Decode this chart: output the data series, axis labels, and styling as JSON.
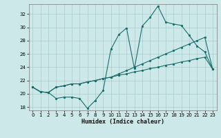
{
  "xlabel": "Humidex (Indice chaleur)",
  "background_color": "#cde8e8",
  "grid_color": "#a8cccc",
  "line_color": "#1a6b6b",
  "xlim": [
    -0.5,
    23.5
  ],
  "ylim": [
    17.5,
    33.5
  ],
  "xticks": [
    0,
    1,
    2,
    3,
    4,
    5,
    6,
    7,
    8,
    9,
    10,
    11,
    12,
    13,
    14,
    15,
    16,
    17,
    18,
    19,
    20,
    21,
    22,
    23
  ],
  "yticks": [
    18,
    20,
    22,
    24,
    26,
    28,
    30,
    32
  ],
  "line1": [
    21.0,
    20.3,
    20.2,
    19.3,
    19.5,
    19.5,
    19.3,
    17.8,
    19.0,
    20.5,
    26.7,
    28.9,
    29.9,
    23.8,
    30.2,
    31.5,
    33.2,
    30.8,
    30.5,
    30.3,
    28.8,
    27.2,
    26.3,
    23.7
  ],
  "line2": [
    21.0,
    20.3,
    20.2,
    21.0,
    21.2,
    21.5,
    21.5,
    21.8,
    22.0,
    22.3,
    22.5,
    23.0,
    23.5,
    24.0,
    24.5,
    25.0,
    25.5,
    26.0,
    26.5,
    27.0,
    27.5,
    28.0,
    28.5,
    23.7
  ],
  "line3": [
    21.0,
    20.3,
    20.2,
    21.0,
    21.2,
    21.5,
    21.5,
    21.8,
    22.0,
    22.3,
    22.5,
    22.8,
    23.0,
    23.3,
    23.5,
    23.8,
    24.0,
    24.3,
    24.5,
    24.8,
    25.0,
    25.3,
    25.5,
    23.7
  ]
}
